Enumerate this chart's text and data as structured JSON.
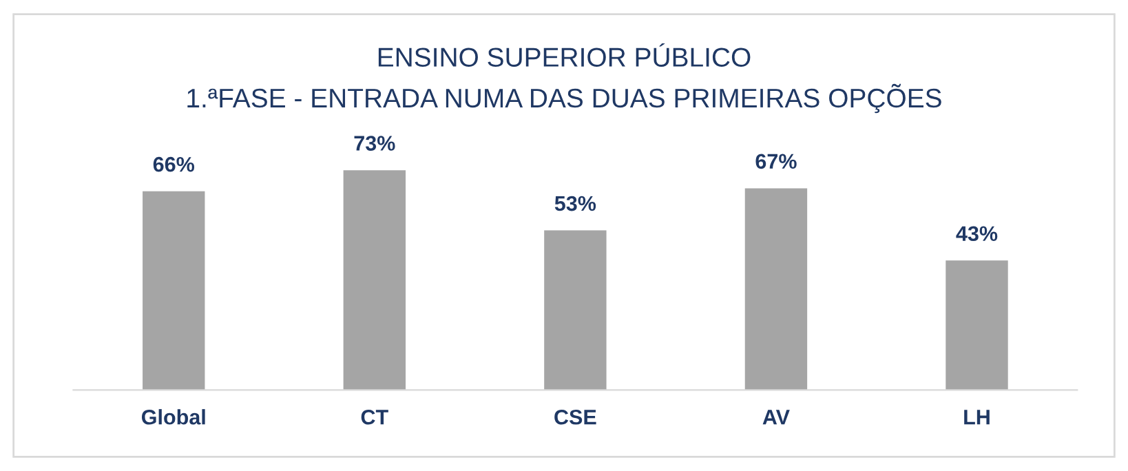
{
  "chart_data": {
    "type": "bar",
    "title": "ENSINO SUPERIOR PÚBLICO\n1.ªFASE - ENTRADA NUMA DAS DUAS PRIMEIRAS OPÇÕES",
    "categories": [
      "Global",
      "CT",
      "CSE",
      "AV",
      "LH"
    ],
    "values": [
      66,
      73,
      53,
      67,
      43
    ],
    "value_labels": [
      "66%",
      "73%",
      "53%",
      "67%",
      "43%"
    ],
    "color": "#a5a5a5",
    "grid": false,
    "legend": false
  }
}
